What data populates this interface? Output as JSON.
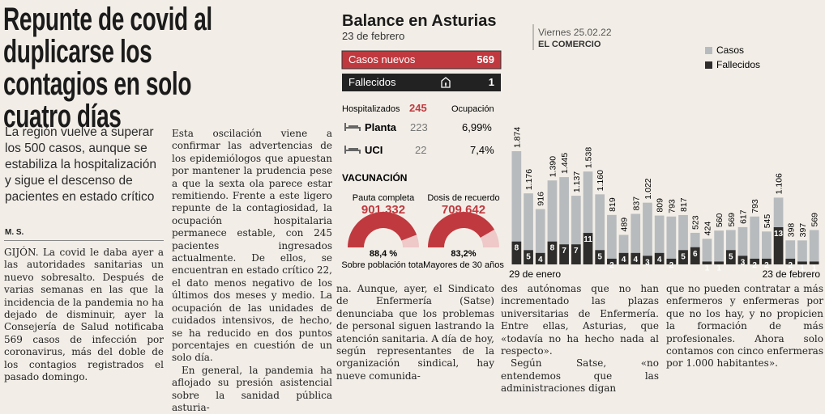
{
  "headline": "Repunte de covid al duplicarse los contagios en solo cuatro días",
  "subhead": "La región vuelve a superar los 500 casos, aunque se estabiliza la hospitalización y sigue el descenso de pacientes en estado crítico",
  "byline": "M. S.",
  "columns": [
    [
      "GIJÓN. La covid le daba ayer a las autoridades sanitarias un nuevo sobresalto. Después de varias semanas en las que la incidencia de la pandemia no ha dejado de disminuir, ayer la Consejería de Salud notificaba 569 casos de infección por coronavirus, más del doble de los contagios registrados el pasado domingo."
    ],
    [
      "Esta oscilación viene a confirmar las advertencias de los epidemiólogos que apuestan por mantener la prudencia pese a que la sexta ola parece estar remitiendo. Frente a este ligero repunte de la contagiosidad, la ocupación hospitalaria permanece estable, con 245 pacientes ingresados actualmente. De ellos, se encuentran en estado crítico 22, el dato menos negativo de los últimos dos meses y medio. La ocupación de las unidades de cuidados intensivos, de hecho, se ha reducido en dos puntos porcentajes en cuestión de un solo día.",
      "En general, la pandemia ha aflojado su presión asistencial sobre la sanidad pública asturia-"
    ],
    [
      "na. Aunque, ayer, el Sindicato de Enfermería (Satse) denunciaba que los problemas de personal siguen lastrando la atención sanitaria. A día de hoy, según representantes de la organización sindical, hay nueve comunida-"
    ],
    [
      "des autónomas que no han incrementado las plazas universitarias de Enfermería. Entre ellas, Asturias, que «todavía no ha hecho nada al respecto».",
      "Según Satse, «no entendemos que las administraciones digan"
    ],
    [
      "que no pueden contratar a más enfermeros y enfermeras por que no los hay, y no propicien la formación de más profesionales. Ahora solo contamos con cinco enfermeras por 1.000 habitantes»."
    ]
  ],
  "infographic": {
    "title": "Balance en Asturias",
    "date": "23 de febrero",
    "stamp_date": "Viernes 25.02.22",
    "stamp_paper": "EL COMERCIO",
    "casos_nuevos": {
      "label": "Casos nuevos",
      "value": "569"
    },
    "fallecidos": {
      "label": "Fallecidos",
      "value": "1"
    },
    "hospitalizados": {
      "label": "Hospitalizados",
      "value": "245",
      "ocupacion": "Ocupación"
    },
    "planta": {
      "label": "Planta",
      "value": "223",
      "pct": "6,99%"
    },
    "uci": {
      "label": "UCI",
      "value": "22",
      "pct": "7,4%"
    },
    "vacunacion": "VACUNACIÓN",
    "pauta": {
      "label": "Pauta completa",
      "total": "901.332",
      "pct": 88.4,
      "pct_label": "88,4 %",
      "note": "Sobre población total"
    },
    "recuerdo": {
      "label": "Dosis de recuerdo",
      "total": "709.642",
      "pct": 83.2,
      "pct_label": "83,2%",
      "note": "Mayores de 30 años"
    }
  },
  "chart_data": {
    "type": "bar",
    "categories": [
      "29 de enero",
      null,
      null,
      null,
      null,
      null,
      null,
      null,
      null,
      null,
      null,
      null,
      null,
      null,
      null,
      null,
      null,
      null,
      null,
      null,
      null,
      null,
      null,
      null,
      null,
      "23 de febrero"
    ],
    "series": [
      {
        "name": "Casos",
        "color": "#b8bbbe",
        "values": [
          1874,
          1176,
          916,
          1390,
          1445,
          1137,
          1538,
          1160,
          819,
          489,
          837,
          1022,
          809,
          793,
          817,
          523,
          424,
          560,
          569,
          617,
          793,
          545,
          1106,
          398,
          397,
          569
        ],
        "value_labels": [
          "1.874",
          "1.176",
          "916",
          "1.390",
          "1.445",
          "1.137",
          "1.538",
          "1.160",
          "819",
          "489",
          "837",
          "1.022",
          "809",
          "793",
          "817",
          "523",
          "424",
          "560",
          "569",
          "617",
          "793",
          "545",
          "1.106",
          "398",
          "397",
          "569"
        ]
      },
      {
        "name": "Fallecidos",
        "color": "#2e2d2c",
        "values": [
          8,
          5,
          4,
          8,
          7,
          7,
          11,
          5,
          2,
          4,
          4,
          3,
          4,
          2,
          5,
          6,
          1,
          1,
          5,
          3,
          2,
          2,
          13,
          2,
          1,
          1
        ]
      }
    ],
    "legend": "top-right"
  }
}
